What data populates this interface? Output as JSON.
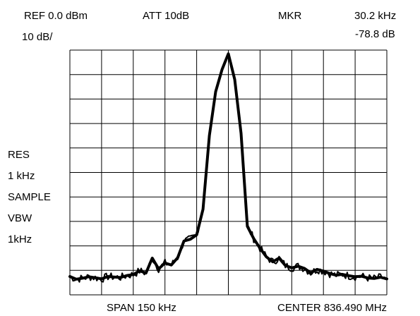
{
  "header": {
    "ref": "REF 0.0 dBm",
    "att": "ATT 10dB",
    "mkr_label": "MKR",
    "mkr_freq": "30.2 kHz",
    "mkr_level": "-78.8 dB",
    "scale": "10 dB/"
  },
  "side": {
    "res": "RES",
    "res_value": "1 kHz",
    "sample": "SAMPLE",
    "vbw": "VBW",
    "vbw_value": "1kHz"
  },
  "footer": {
    "span": "SPAN 150 kHz",
    "center": "CENTER 836.490 MHz"
  },
  "colors": {
    "trace": "#000000",
    "grid": "#000000",
    "background": "#ffffff"
  },
  "chart_data": {
    "type": "line",
    "grid": true,
    "x_unit": "kHz offset from center",
    "y_unit": "dB relative to reference",
    "xlim": [
      -75,
      75
    ],
    "ylim": [
      -100,
      0
    ],
    "x_divisions": 10,
    "y_divisions": 10,
    "series": [
      {
        "x": [
          -75,
          -72,
          -69,
          -66,
          -63,
          -60,
          -57,
          -54,
          -51,
          -48,
          -45,
          -42,
          -39,
          -36,
          -33,
          -30,
          -27,
          -24,
          -21,
          -18,
          -15,
          -12,
          -9,
          -6,
          -3,
          0,
          3,
          6,
          9,
          12,
          15,
          18,
          21,
          24,
          27,
          30,
          33,
          36,
          39,
          42,
          45,
          48,
          51,
          54,
          57,
          60,
          63,
          66,
          69,
          72,
          75
        ],
        "y": [
          -92.5,
          -93.6,
          -93.2,
          -92.6,
          -93.0,
          -93.5,
          -92.5,
          -92.7,
          -92.9,
          -92.1,
          -91.7,
          -90.2,
          -91.1,
          -85.0,
          -89.4,
          -87.0,
          -87.8,
          -84.8,
          -78.0,
          -77.3,
          -75.5,
          -65.0,
          -35.0,
          -17.0,
          -8.0,
          -1.5,
          -12.0,
          -34.0,
          -72.0,
          -77.0,
          -81.0,
          -84.5,
          -86.5,
          -85.0,
          -88.0,
          -89.0,
          -88.3,
          -89.2,
          -91.0,
          -89.6,
          -90.3,
          -91.3,
          -92.0,
          -91.6,
          -92.2,
          -92.6,
          -92.4,
          -93.1,
          -93.3,
          -92.8,
          -93.5
        ]
      }
    ]
  }
}
